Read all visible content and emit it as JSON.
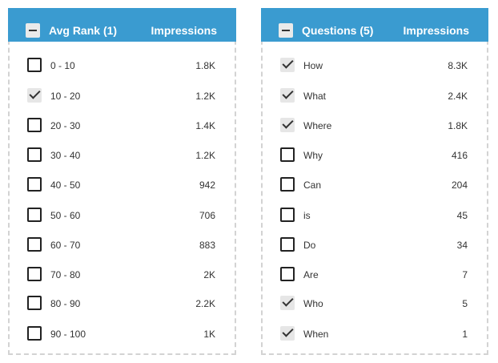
{
  "avg_rank_panel": {
    "title": "Avg Rank (1)",
    "metric_label": "Impressions",
    "rows": [
      {
        "label": "0 - 10",
        "value": "1.8K",
        "checked": false
      },
      {
        "label": "10 - 20",
        "value": "1.2K",
        "checked": true
      },
      {
        "label": "20 - 30",
        "value": "1.4K",
        "checked": false
      },
      {
        "label": "30 - 40",
        "value": "1.2K",
        "checked": false
      },
      {
        "label": "40 - 50",
        "value": "942",
        "checked": false
      },
      {
        "label": "50 - 60",
        "value": "706",
        "checked": false
      },
      {
        "label": "60 - 70",
        "value": "883",
        "checked": false
      },
      {
        "label": "70 - 80",
        "value": "2K",
        "checked": false
      },
      {
        "label": "80 - 90",
        "value": "2.2K",
        "checked": false
      },
      {
        "label": "90 - 100",
        "value": "1K",
        "checked": false
      }
    ]
  },
  "questions_panel": {
    "title": "Questions (5)",
    "metric_label": "Impressions",
    "rows": [
      {
        "label": "How",
        "value": "8.3K",
        "checked": true
      },
      {
        "label": "What",
        "value": "2.4K",
        "checked": true
      },
      {
        "label": "Where",
        "value": "1.8K",
        "checked": true
      },
      {
        "label": "Why",
        "value": "416",
        "checked": false
      },
      {
        "label": "Can",
        "value": "204",
        "checked": false
      },
      {
        "label": "is",
        "value": "45",
        "checked": false
      },
      {
        "label": "Do",
        "value": "34",
        "checked": false
      },
      {
        "label": "Are",
        "value": "7",
        "checked": false
      },
      {
        "label": "Who",
        "value": "5",
        "checked": true
      },
      {
        "label": "When",
        "value": "1",
        "checked": true
      }
    ]
  },
  "colors": {
    "header_bg": "#3a9bd0",
    "header_text": "#ffffff",
    "checkbox_checked_bg": "#e6e6e6"
  },
  "icons": {
    "collapse": "minus-icon",
    "checked": "checkmark-icon"
  }
}
